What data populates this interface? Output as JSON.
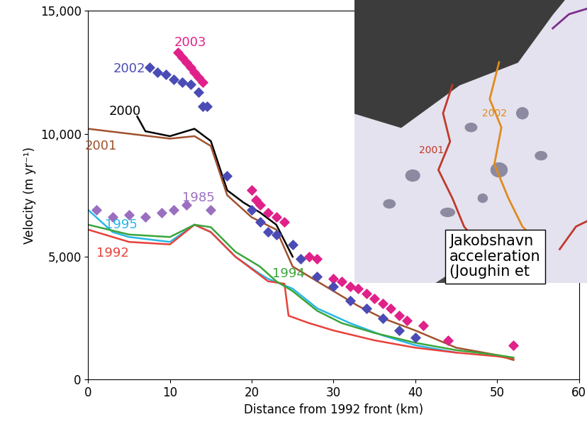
{
  "chart_data": {
    "type": "line",
    "xlabel": "Distance from 1992 front (km)",
    "ylabel": "Velocity (m yr⁻¹)",
    "xlim": [
      0,
      60
    ],
    "xticks": [
      0,
      10,
      20,
      30,
      40,
      50,
      60
    ],
    "ylim": [
      0,
      15000
    ],
    "yticks": [
      0,
      {
        "value": 5000,
        "label": "5,000"
      },
      {
        "value": 10000,
        "label": "10,000"
      },
      {
        "value": 15000,
        "label": "15,000"
      }
    ],
    "grid": false,
    "series": [
      {
        "name": "2003",
        "type": "scatter",
        "marker": "diamond",
        "color": "#e0218a",
        "x": [
          11,
          11.5,
          12,
          12.5,
          13,
          13.5,
          14,
          20,
          20.5,
          21,
          22,
          23,
          24,
          27,
          28,
          30,
          31,
          32,
          33,
          34,
          35,
          36,
          37,
          38,
          39,
          41,
          44,
          52
        ],
        "values": [
          13300,
          13100,
          12900,
          12700,
          12500,
          12300,
          12100,
          7700,
          7300,
          7100,
          6800,
          6600,
          6400,
          5000,
          4900,
          4100,
          4000,
          3800,
          3700,
          3500,
          3300,
          3100,
          2900,
          2600,
          2400,
          2200,
          1600,
          1400
        ]
      },
      {
        "name": "2002",
        "type": "scatter",
        "marker": "diamond",
        "color": "#4b4bb5",
        "x": [
          7.5,
          8.5,
          9.5,
          10.5,
          11.5,
          12.5,
          13.5,
          14,
          14.5,
          17,
          20,
          21,
          22,
          23,
          25,
          26,
          28,
          30,
          32,
          34,
          36,
          38,
          40
        ],
        "values": [
          12700,
          12500,
          12400,
          12200,
          12100,
          12000,
          11700,
          11100,
          11100,
          8300,
          6900,
          6400,
          6000,
          5900,
          5500,
          4900,
          4200,
          3800,
          3200,
          2900,
          2500,
          2000,
          1700
        ]
      },
      {
        "name": "2000",
        "type": "line",
        "color": "#000000",
        "x": [
          6,
          7,
          10,
          13,
          15,
          17,
          19,
          21,
          23,
          25
        ],
        "values": [
          10700,
          10100,
          9900,
          10200,
          9700,
          7700,
          7200,
          6800,
          6300,
          5000
        ]
      },
      {
        "name": "2001",
        "type": "line",
        "color": "#a0522d",
        "x": [
          0,
          5,
          10,
          13,
          15,
          17,
          20,
          23,
          25,
          28,
          30,
          33,
          36,
          40,
          45,
          50,
          52
        ],
        "values": [
          10200,
          10000,
          9800,
          9900,
          9500,
          7500,
          6600,
          6100,
          4600,
          4000,
          3600,
          3000,
          2500,
          2000,
          1300,
          1000,
          800
        ]
      },
      {
        "name": "1985",
        "type": "scatter",
        "marker": "diamond",
        "color": "#9b6fc0",
        "x": [
          1,
          3,
          5,
          7,
          9,
          10.5,
          12,
          15
        ],
        "values": [
          6900,
          6600,
          6700,
          6600,
          6800,
          6900,
          7100,
          6900
        ]
      },
      {
        "name": "1995",
        "type": "line",
        "color": "#29b6e8",
        "x": [
          0,
          3,
          5,
          10,
          13,
          15,
          18,
          21,
          22,
          25,
          28,
          32,
          36,
          40,
          45
        ],
        "values": [
          6900,
          6000,
          5800,
          5600,
          6300,
          6000,
          5000,
          4300,
          4100,
          3700,
          2900,
          2300,
          1800,
          1400,
          1100
        ]
      },
      {
        "name": "1992",
        "type": "line",
        "color": "#e8413a",
        "x": [
          0,
          5,
          10,
          13,
          15,
          18,
          22,
          24,
          24.5,
          27,
          30,
          35,
          40,
          45,
          50,
          52
        ],
        "values": [
          6100,
          5600,
          5500,
          6300,
          6000,
          5000,
          4000,
          3900,
          2600,
          2300,
          2000,
          1600,
          1300,
          1100,
          950,
          850
        ]
      },
      {
        "name": "1994",
        "type": "line",
        "color": "#3aa53a",
        "x": [
          0,
          5,
          10,
          13,
          15,
          18,
          21,
          23,
          25,
          28,
          31,
          35,
          40,
          45,
          50,
          52
        ],
        "values": [
          6300,
          5900,
          5800,
          6300,
          6200,
          5200,
          4600,
          4000,
          3600,
          2800,
          2300,
          1900,
          1500,
          1200,
          1000,
          900
        ]
      }
    ],
    "inset": {
      "labels": [
        {
          "text": "2001",
          "color": "#c0392b"
        },
        {
          "text": "2002",
          "color": "#e08a1e"
        }
      ],
      "caption": [
        "Jakobshavn",
        "acceleration",
        "(Joughin et"
      ]
    }
  }
}
